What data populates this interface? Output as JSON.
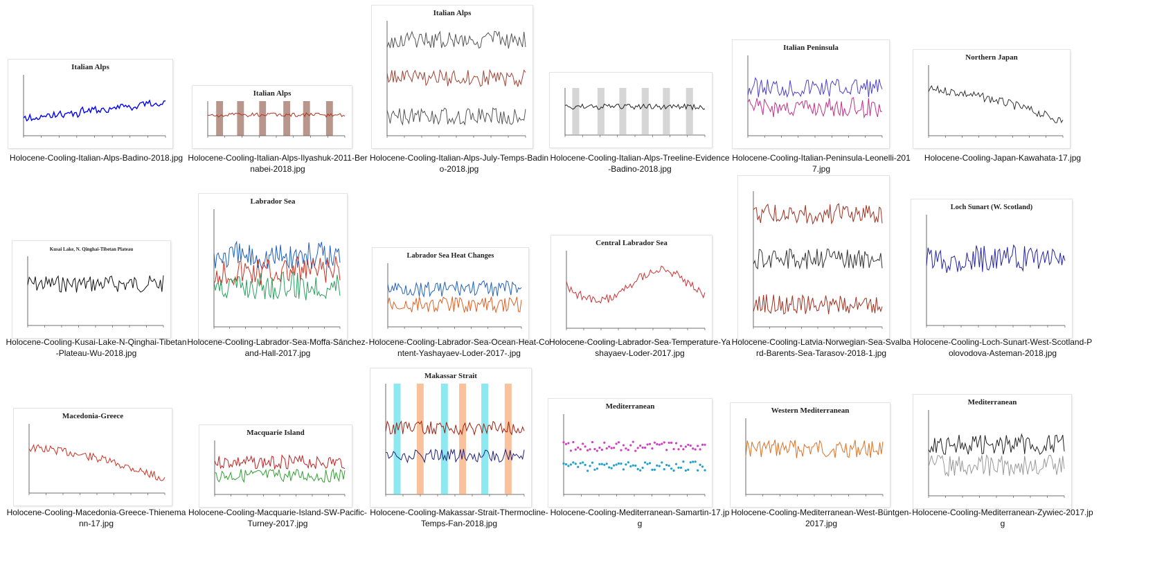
{
  "files": [
    {
      "name": "Holocene-Cooling-Italian-Alps-Badino-2018.jpg",
      "title": "Italian Alps",
      "palette": "blue",
      "lines": [
        "blue"
      ],
      "style": "steps"
    },
    {
      "name": "Holocene-Cooling-Italian-Alps-Ilyashuk-2011-Bernabei-2018.jpg",
      "title": "Italian Alps",
      "palette": "brown",
      "lines": [
        "#b03020"
      ],
      "style": "bands"
    },
    {
      "name": "Holocene-Cooling-Italian-Alps-July-Temps-Badino-2018.jpg",
      "title": "Italian Alps",
      "palette": "stack",
      "lines": [
        "#555555",
        "#a04030",
        "#555555"
      ],
      "style": "stack"
    },
    {
      "name": "Holocene-Cooling-Italian-Alps-Treeline-Evidence-Badino-2018.jpg",
      "title": "",
      "palette": "gray",
      "lines": [
        "#222222"
      ],
      "style": "bands"
    },
    {
      "name": "Holocene-Cooling-Italian-Peninsula-Leonelli-2017.jpg",
      "title": "Italian Peninsula",
      "palette": "purple",
      "lines": [
        "#4a3fd0",
        "#c0308a"
      ],
      "style": "noise"
    },
    {
      "name": "Holocene-Cooling-Japan-Kawahata-17.jpg",
      "title": "Northern Japan",
      "palette": "gray",
      "lines": [
        "#333333"
      ],
      "style": "decline"
    },
    {
      "name": "Holocene-Cooling-Kusai-Lake-N-Qinghai-Tibetan-Plateau-Wu-2018.jpg",
      "title": "Kusai Lake, N. Qinghai-Tibetan Plateau",
      "palette": "black",
      "lines": [
        "#111111"
      ],
      "style": "noise"
    },
    {
      "name": "Holocene-Cooling-Labrador-Sea-Moffa-Sánchez-and-Hall-2017.jpg",
      "title": "Labrador Sea",
      "palette": "multi",
      "lines": [
        "#1f5fbf",
        "#d03020",
        "#2aa060"
      ],
      "style": "noise"
    },
    {
      "name": "Holocene-Cooling-Labrador-Sea-Ocean-Heat-Content-Yashayaev-Loder-2017-.jpg",
      "title": "Labrador Sea Heat Changes",
      "palette": "blue",
      "lines": [
        "#2060c0",
        "#e06020"
      ],
      "style": "noise"
    },
    {
      "name": "Holocene-Cooling-Labrador-Sea-Temperature-Yashayaev-Loder-2017.jpg",
      "title": "Central Labrador Sea",
      "palette": "red",
      "lines": [
        "#d03030"
      ],
      "style": "wave"
    },
    {
      "name": "Holocene-Cooling-Latvia-Norwegian-Sea-Svalbard-Barents-Sea-Tarasov-2018-1.jpg",
      "title": "",
      "palette": "stack",
      "lines": [
        "#a03020",
        "#333333",
        "#a03020"
      ],
      "style": "stack"
    },
    {
      "name": "Holocene-Cooling-Loch-Sunart-West-Scotland-Polovodova-Asteman-2018.jpg",
      "title": "Loch Sunart (W. Scotland)",
      "palette": "blue",
      "lines": [
        "#2222aa"
      ],
      "style": "noise"
    },
    {
      "name": "Holocene-Cooling-Macedonia-Greece-Thienemann-17.jpg",
      "title": "Macedonia-Greece",
      "palette": "red",
      "lines": [
        "#d03020"
      ],
      "style": "decline"
    },
    {
      "name": "Holocene-Cooling-Macquarie-Island-SW-Pacific-Turney-2017.jpg",
      "title": "Macquarie Island",
      "palette": "multi",
      "lines": [
        "#c02020",
        "#30a030"
      ],
      "style": "noise"
    },
    {
      "name": "Holocene-Cooling-Makassar-Strait-Thermocline-Temps-Fan-2018.jpg",
      "title": "Makassar Strait",
      "palette": "multi",
      "lines": [
        "#a02010",
        "#202080"
      ],
      "style": "bands"
    },
    {
      "name": "Holocene-Cooling-Mediterranean-Samartin-17.jpg",
      "title": "Mediterranean",
      "palette": "purple",
      "lines": [
        "#d040c0",
        "#20a0d0"
      ],
      "style": "scatter"
    },
    {
      "name": "Holocene-Cooling-Mediterranean-West-Büntgen-2017.jpg",
      "title": "Western Mediterranean",
      "palette": "orange",
      "lines": [
        "#e07020"
      ],
      "style": "noise"
    },
    {
      "name": "Holocene-Cooling-Mediterranean-Zywiec-2017.jpg",
      "title": "Mediterranean",
      "palette": "gray",
      "lines": [
        "#222222",
        "#999999"
      ],
      "style": "noise"
    }
  ]
}
